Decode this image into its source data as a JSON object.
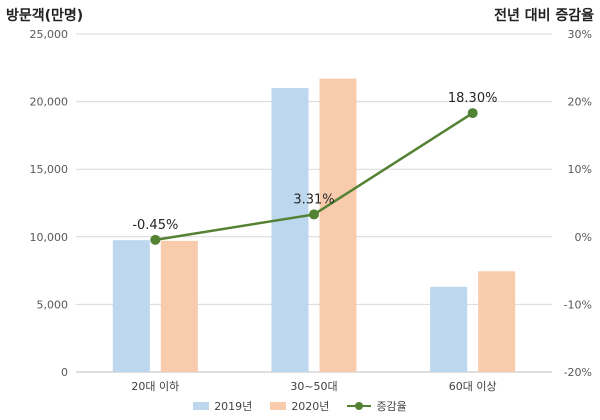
{
  "chart_data": {
    "type": "bar",
    "title": "",
    "left_axis_title": "방문객(만명)",
    "right_axis_title": "전년 대비 증감율",
    "categories": [
      "20대 이하",
      "30~50대",
      "60대 이상"
    ],
    "series": [
      {
        "name": "2019년",
        "type": "bar",
        "axis": "left",
        "color": "#BDD7EE",
        "values": [
          9750,
          21000,
          6300
        ]
      },
      {
        "name": "2020년",
        "type": "bar",
        "axis": "left",
        "color": "#F8CBAD",
        "values": [
          9700,
          21700,
          7450
        ]
      },
      {
        "name": "증감율",
        "type": "line",
        "axis": "right",
        "color": "#548235",
        "values": [
          -0.45,
          3.31,
          18.3
        ],
        "labels": [
          "-0.45%",
          "3.31%",
          "18.30%"
        ]
      }
    ],
    "ylim_left": [
      0,
      25000
    ],
    "yticks_left": [
      "0",
      "5,000",
      "10,000",
      "15,000",
      "20,000",
      "25,000"
    ],
    "ylim_right": [
      -20,
      30
    ],
    "yticks_right": [
      "-20%",
      "-10%",
      "0%",
      "10%",
      "20%",
      "30%"
    ],
    "grid": true,
    "legend_position": "bottom"
  }
}
